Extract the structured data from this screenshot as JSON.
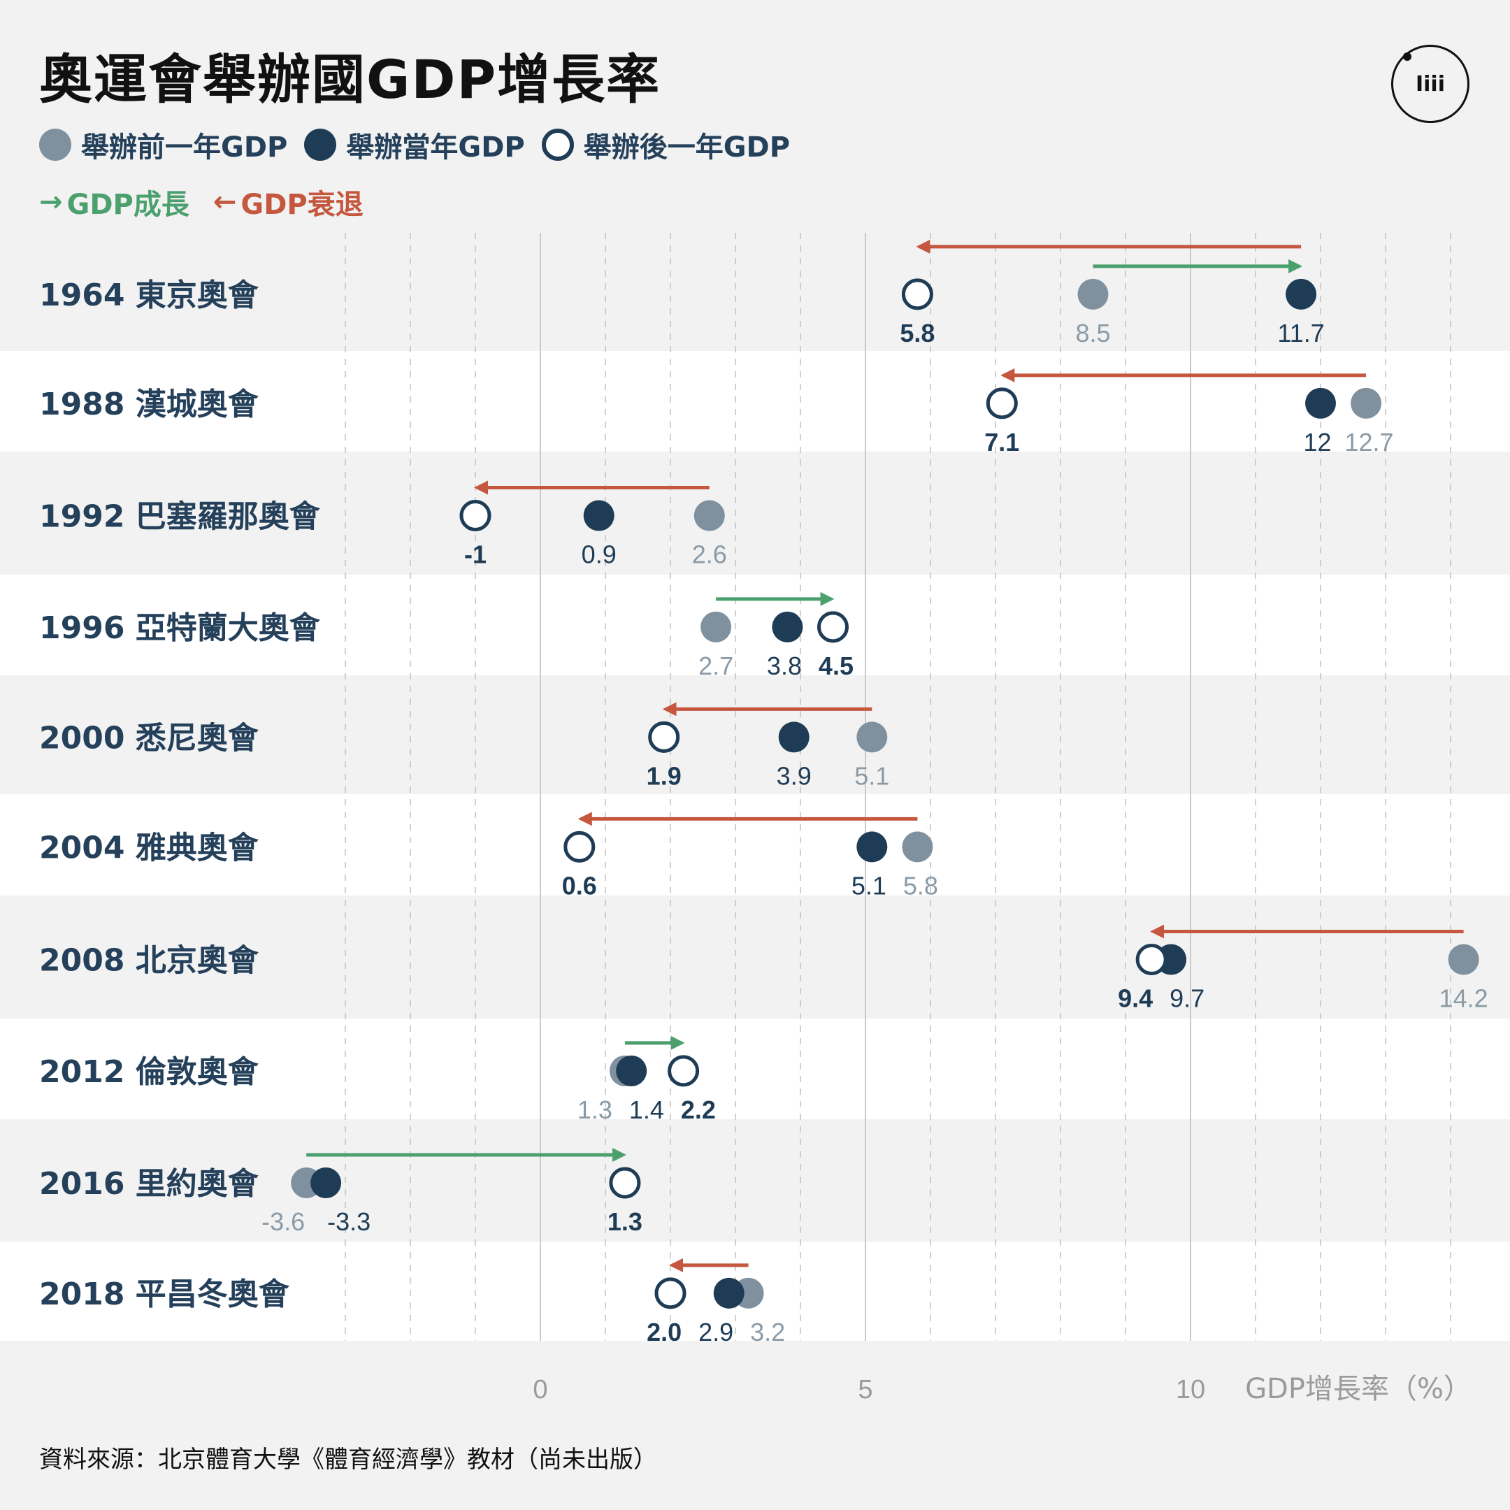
{
  "title": "奧運會舉辦國GDP增長率",
  "logo_text": "Iiii",
  "legend": {
    "before": "舉辦前一年GDP",
    "during": "舉辦當年GDP",
    "after": "舉辦後一年GDP",
    "growth": "GDP成長",
    "recession": "GDP衰退",
    "growth_arrow": "→",
    "recession_arrow": "←"
  },
  "colors": {
    "before": "#7f919e",
    "during": "#1f3c56",
    "after_stroke": "#1f3c56",
    "growth": "#4ba06d",
    "recession": "#c4573e",
    "label_before": "#8a9aa6",
    "label_during": "#1f3c56",
    "label_after": "#1f3c56",
    "row_label": "#24405a"
  },
  "source": "資料來源：北京體育大學《體育經濟學》教材（尚未出版）",
  "chart_data": {
    "type": "dot-plot",
    "xlabel": "GDP增長率（%）",
    "xlim": [
      -8,
      14.8
    ],
    "xticks": [
      0,
      5,
      10
    ],
    "grid": "dashed every 1 unit, solid at 0, 5, 10",
    "categories": [
      "1964 東京奧會",
      "1988 漢城奧會",
      "1992 巴塞羅那奧會",
      "1996 亞特蘭大奧會",
      "2000 悉尼奧會",
      "2004 雅典奧會",
      "2008 北京奧會",
      "2012 倫敦奧會",
      "2016 里約奧會",
      "2018 平昌冬奧會"
    ],
    "series": [
      {
        "name": "舉辦前一年GDP",
        "key": "before",
        "values": [
          8.5,
          12.7,
          2.6,
          2.7,
          5.1,
          5.8,
          14.2,
          1.3,
          -3.6,
          3.2
        ]
      },
      {
        "name": "舉辦當年GDP",
        "key": "during",
        "values": [
          11.7,
          12,
          0.9,
          3.8,
          3.9,
          5.1,
          9.7,
          1.4,
          -3.3,
          2.9
        ]
      },
      {
        "name": "舉辦後一年GDP",
        "key": "after",
        "values": [
          5.8,
          7.1,
          -1,
          4.5,
          1.9,
          0.6,
          9.4,
          2.2,
          1.3,
          2.0
        ]
      }
    ],
    "value_labels": [
      {
        "before": "8.5",
        "during": "11.7",
        "after": "5.8"
      },
      {
        "before": "12.7",
        "during": "12",
        "after": "7.1"
      },
      {
        "before": "2.6",
        "during": "0.9",
        "after": "-1"
      },
      {
        "before": "2.7",
        "during": "3.8",
        "after": "4.5"
      },
      {
        "before": "5.1",
        "during": "3.9",
        "after": "1.9"
      },
      {
        "before": "5.8",
        "during": "5.1",
        "after": "0.6"
      },
      {
        "before": "14.2",
        "during": "9.7",
        "after": "9.4"
      },
      {
        "before": "1.3",
        "during": "1.4",
        "after": "2.2"
      },
      {
        "before": "-3.6",
        "during": "-3.3",
        "after": "1.3"
      },
      {
        "before": "3.2",
        "during": "2.9",
        "after": "2.0"
      }
    ],
    "arrows": [
      [
        {
          "from": 11.7,
          "to": 5.8,
          "kind": "recession"
        },
        {
          "from": 8.5,
          "to": 11.7,
          "kind": "growth"
        }
      ],
      [
        {
          "from": 12.7,
          "to": 7.1,
          "kind": "recession"
        }
      ],
      [
        {
          "from": 2.6,
          "to": -1,
          "kind": "recession"
        }
      ],
      [
        {
          "from": 2.7,
          "to": 4.5,
          "kind": "growth"
        }
      ],
      [
        {
          "from": 5.1,
          "to": 1.9,
          "kind": "recession"
        }
      ],
      [
        {
          "from": 5.8,
          "to": 0.6,
          "kind": "recession"
        }
      ],
      [
        {
          "from": 14.2,
          "to": 9.4,
          "kind": "recession"
        }
      ],
      [
        {
          "from": 1.3,
          "to": 2.2,
          "kind": "growth"
        }
      ],
      [
        {
          "from": -3.6,
          "to": 1.3,
          "kind": "growth"
        }
      ],
      [
        {
          "from": 3.2,
          "to": 2.0,
          "kind": "recession"
        }
      ]
    ]
  }
}
